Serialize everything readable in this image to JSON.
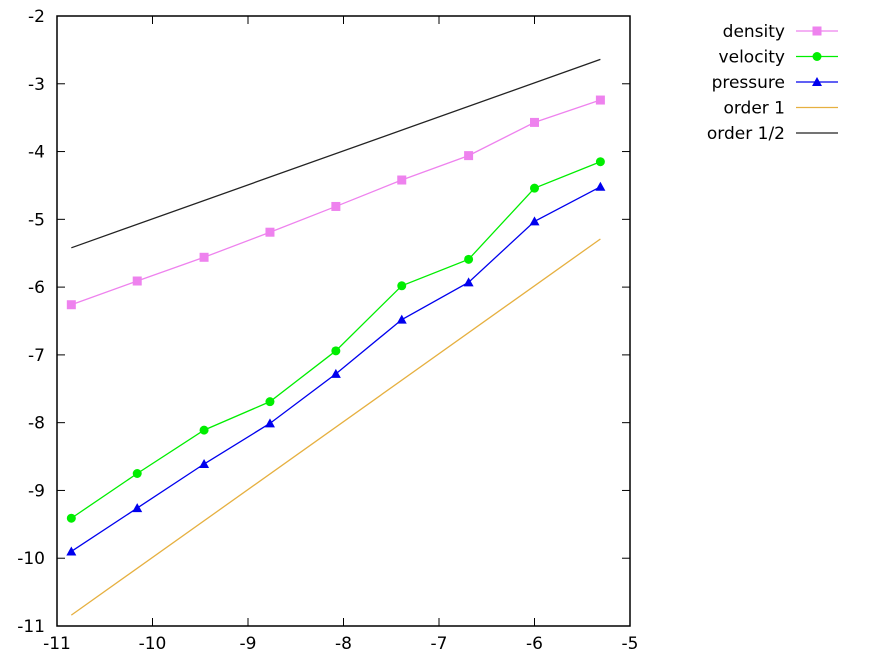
{
  "chart_data": {
    "type": "line",
    "title": "",
    "xlabel": "",
    "ylabel": "",
    "xlim": [
      -11,
      -5
    ],
    "ylim": [
      -11,
      -2
    ],
    "grid": false,
    "legend_position": "outside-top-right",
    "x_ticks": [
      -11,
      -10,
      -9,
      -8,
      -7,
      -6,
      -5
    ],
    "x_tick_labels": [
      "-11",
      "-10",
      "-9",
      "-8",
      "-7",
      "-6",
      "-5"
    ],
    "y_ticks": [
      -11,
      -10,
      -9,
      -8,
      -7,
      -6,
      -5,
      -4,
      -3,
      -2
    ],
    "y_tick_labels": [
      "-11",
      "-10",
      "-9",
      "-8",
      "-7",
      "-6",
      "-5",
      "-4",
      "-3",
      "-2"
    ],
    "series": [
      {
        "name": "density",
        "color": "#ee82ee",
        "marker": "square",
        "x": [
          -10.85,
          -10.16,
          -9.46,
          -8.77,
          -8.08,
          -7.39,
          -6.69,
          -6.0,
          -5.31
        ],
        "y": [
          -6.26,
          -5.91,
          -5.56,
          -5.19,
          -4.81,
          -4.42,
          -4.06,
          -3.57,
          -3.24
        ]
      },
      {
        "name": "velocity",
        "color": "#00ee00",
        "marker": "circle",
        "x": [
          -10.85,
          -10.16,
          -9.46,
          -8.77,
          -8.08,
          -7.39,
          -6.69,
          -6.0,
          -5.31
        ],
        "y": [
          -9.41,
          -8.75,
          -8.11,
          -7.69,
          -6.94,
          -5.98,
          -5.59,
          -4.54,
          -4.15
        ]
      },
      {
        "name": "pressure",
        "color": "#0000ee",
        "marker": "triangle",
        "x": [
          -10.85,
          -10.16,
          -9.46,
          -8.77,
          -8.08,
          -7.39,
          -6.69,
          -6.0,
          -5.31
        ],
        "y": [
          -9.9,
          -9.26,
          -8.61,
          -8.01,
          -7.28,
          -6.48,
          -5.93,
          -5.03,
          -4.52
        ]
      },
      {
        "name": "order 1",
        "color": "#e6b040",
        "marker": "none",
        "x": [
          -10.85,
          -5.31
        ],
        "y": [
          -10.84,
          -5.29
        ]
      },
      {
        "name": "order 1/2",
        "color": "#222222",
        "marker": "none",
        "x": [
          -10.85,
          -5.31
        ],
        "y": [
          -5.42,
          -2.64
        ]
      }
    ]
  }
}
